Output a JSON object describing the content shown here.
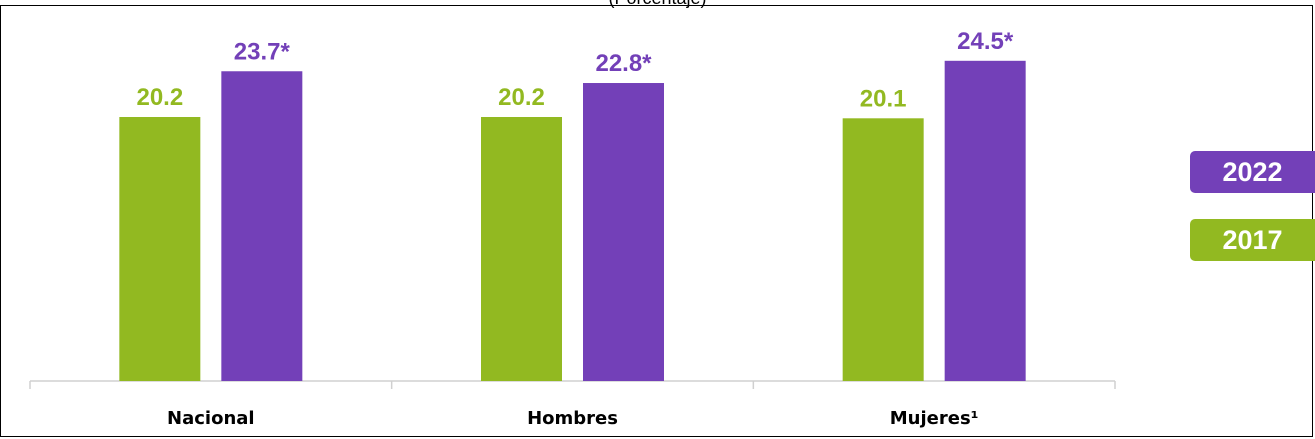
{
  "chart_data": {
    "type": "bar",
    "subtitle": "(Porcentaje)",
    "categories": [
      "Nacional",
      "Hombres",
      "Mujeres¹"
    ],
    "series": [
      {
        "name": "2017",
        "values": [
          20.2,
          20.2,
          20.1
        ],
        "labels": [
          "20.2",
          "20.2",
          "20.1"
        ],
        "color": "#92b921"
      },
      {
        "name": "2022",
        "values": [
          23.7,
          22.8,
          24.5
        ],
        "labels": [
          "23.7*",
          "22.8*",
          "24.5*"
        ],
        "color": "#7340b8"
      }
    ],
    "ylim": [
      0,
      30
    ],
    "grid": false,
    "legend_position": "right",
    "legend_order": [
      "2022",
      "2017"
    ]
  }
}
